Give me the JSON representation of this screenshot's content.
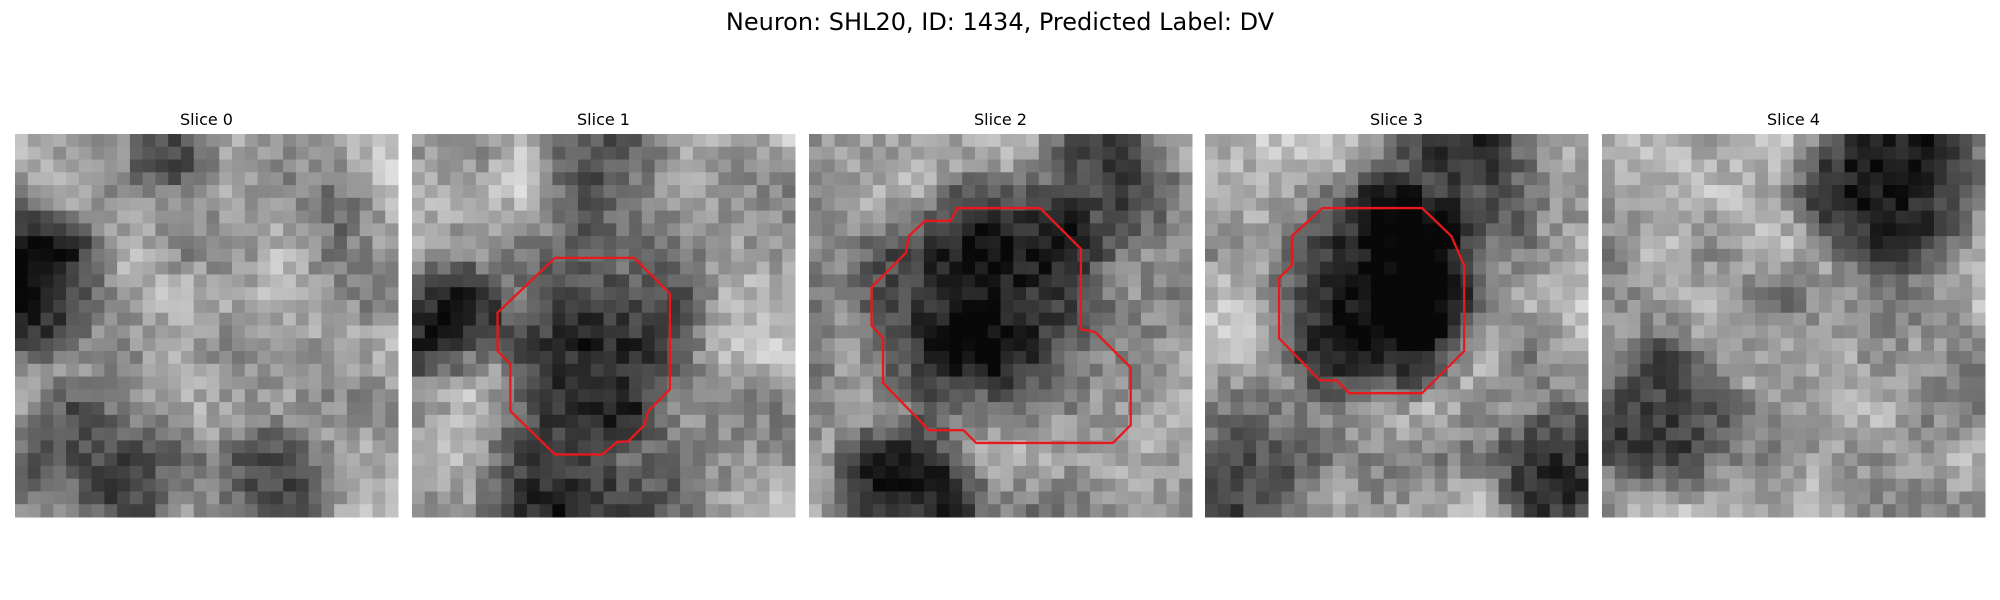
{
  "title": "Neuron: SHL20, ID: 1434, Predicted Label: DV",
  "panels": [
    {
      "title": "Slice 0"
    },
    {
      "title": "Slice 1"
    },
    {
      "title": "Slice 2"
    },
    {
      "title": "Slice 3"
    },
    {
      "title": "Slice 4"
    }
  ]
}
